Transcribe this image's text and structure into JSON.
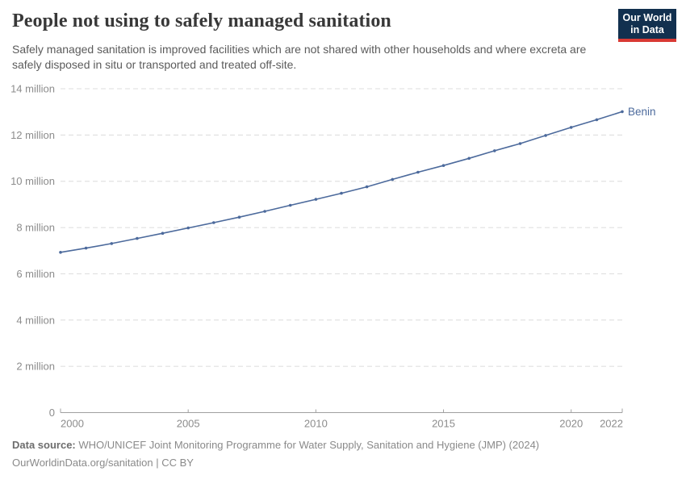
{
  "header": {
    "title": "People not using to safely managed sanitation",
    "subtitle": "Safely managed sanitation is improved facilities which are not shared with other households and where excreta are safely disposed in situ or transported and treated off-site.",
    "logo": {
      "line1": "Our World",
      "line2": "in Data"
    }
  },
  "chart_data": {
    "type": "line",
    "title": "People not using to safely managed sanitation",
    "xlabel": "",
    "ylabel": "",
    "unit": "people (millions)",
    "x": [
      2000,
      2001,
      2002,
      2003,
      2004,
      2005,
      2006,
      2007,
      2008,
      2009,
      2010,
      2011,
      2012,
      2013,
      2014,
      2015,
      2016,
      2017,
      2018,
      2019,
      2020,
      2021,
      2022
    ],
    "series": [
      {
        "name": "Benin",
        "color": "#4c6a9c",
        "values_millions": [
          6.93,
          7.11,
          7.31,
          7.53,
          7.75,
          7.98,
          8.21,
          8.45,
          8.7,
          8.96,
          9.22,
          9.48,
          9.76,
          10.08,
          10.39,
          10.68,
          10.99,
          11.32,
          11.63,
          11.98,
          12.33,
          12.66,
          13.01
        ]
      }
    ],
    "xlim": [
      2000,
      2022
    ],
    "ylim_millions": [
      0,
      14
    ],
    "x_ticks": [
      2000,
      2005,
      2010,
      2015,
      2020,
      2022
    ],
    "x_tick_labels": [
      "2000",
      "2005",
      "2010",
      "2015",
      "2020",
      "2022"
    ],
    "y_tick_values_millions": [
      0,
      2,
      4,
      6,
      8,
      10,
      12,
      14
    ],
    "y_tick_labels": [
      "0",
      "2 million",
      "4 million",
      "6 million",
      "8 million",
      "10 million",
      "12 million",
      "14 million"
    ],
    "grid": "horizontal-dashed",
    "legend": "series-end-label"
  },
  "footer": {
    "source_label": "Data source:",
    "source_text": "WHO/UNICEF Joint Monitoring Programme for Water Supply, Sanitation and Hygiene (JMP) (2024)",
    "license_line": "OurWorldinData.org/sanitation | CC BY"
  },
  "colors": {
    "line": "#4c6a9c",
    "grid": "#dcdcdc",
    "axis": "#a0a0a0",
    "tick_label": "#8c8c8c",
    "title": "#383838",
    "subtitle": "#5b5b5b",
    "logo_bg": "#12304f",
    "logo_stripe": "#d93a34"
  }
}
